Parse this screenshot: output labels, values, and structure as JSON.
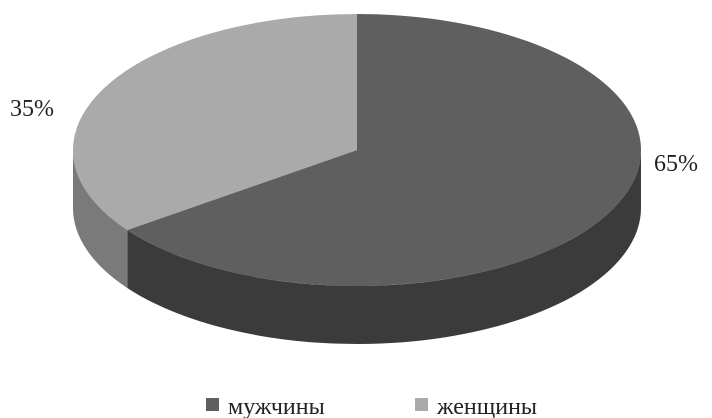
{
  "chart_data": {
    "type": "pie",
    "style": "3d",
    "slices": [
      {
        "name": "мужчины",
        "value": 65,
        "label": "65%",
        "color": "#5f5f5f"
      },
      {
        "name": "женщины",
        "value": 35,
        "label": "35%",
        "color": "#aaaaaa"
      }
    ],
    "legend_position": "bottom",
    "legend": [
      {
        "label": "мужчины",
        "color": "#5f5f5f"
      },
      {
        "label": "женщины",
        "color": "#aaaaaa"
      }
    ]
  }
}
